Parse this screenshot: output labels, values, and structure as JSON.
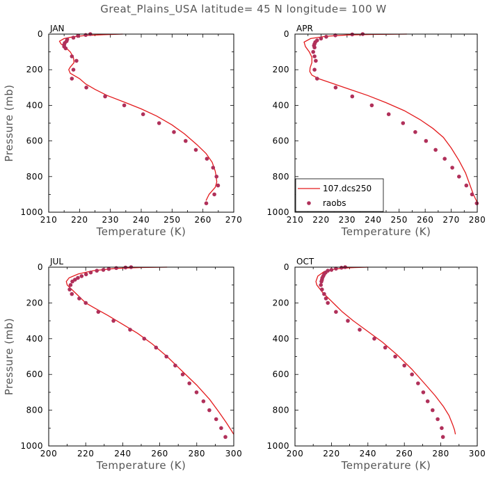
{
  "figure": {
    "title": "Great_Plains_USA  latitude= 45 N longitude= 100 W"
  },
  "legend": {
    "model_label": "107.dcs250",
    "obs_label": "raobs",
    "model_color": "#e31a1c",
    "obs_color": "#b0305a"
  },
  "chart_data": [
    {
      "type": "line",
      "title": "JAN",
      "xlabel": "Temperature (K)",
      "ylabel": "Pressure (mb)",
      "xlim": [
        210,
        270
      ],
      "xticks": [
        210,
        220,
        230,
        240,
        250,
        260,
        270
      ],
      "ylim": [
        1000,
        0
      ],
      "yticks": [
        0,
        200,
        400,
        600,
        800,
        1000
      ],
      "series": [
        {
          "name": "107.dcs250",
          "kind": "line",
          "points": [
            [
              234,
              0
            ],
            [
              228,
              3
            ],
            [
              222,
              8
            ],
            [
              218,
              15
            ],
            [
              215,
              25
            ],
            [
              213.5,
              40
            ],
            [
              214,
              55
            ],
            [
              215.5,
              75
            ],
            [
              217,
              100
            ],
            [
              218,
              130
            ],
            [
              218.2,
              160
            ],
            [
              217,
              185
            ],
            [
              216.5,
              200
            ],
            [
              217,
              220
            ],
            [
              218.5,
              235
            ],
            [
              220,
              250
            ],
            [
              222,
              280
            ],
            [
              225,
              310
            ],
            [
              229,
              345
            ],
            [
              235,
              385
            ],
            [
              240,
              420
            ],
            [
              245,
              460
            ],
            [
              250,
              510
            ],
            [
              254,
              560
            ],
            [
              258,
              620
            ],
            [
              261,
              670
            ],
            [
              263,
              720
            ],
            [
              264,
              770
            ],
            [
              264.3,
              800
            ],
            [
              264.5,
              830
            ],
            [
              264,
              860
            ],
            [
              262,
              900
            ],
            [
              261,
              935
            ]
          ]
        },
        {
          "name": "raobs",
          "kind": "scatter",
          "points": [
            [
              223.5,
              0
            ],
            [
              222,
              5
            ],
            [
              219.5,
              10
            ],
            [
              218,
              20
            ],
            [
              216,
              30
            ],
            [
              215.8,
              40
            ],
            [
              215.2,
              50
            ],
            [
              215,
              60
            ],
            [
              215,
              70
            ],
            [
              215.5,
              80
            ],
            [
              217.5,
              125
            ],
            [
              219,
              150
            ],
            [
              218,
              200
            ],
            [
              217.5,
              250
            ],
            [
              222.2,
              300
            ],
            [
              228.3,
              350
            ],
            [
              234.5,
              400
            ],
            [
              240.6,
              450
            ],
            [
              245.8,
              500
            ],
            [
              250.6,
              550
            ],
            [
              254.4,
              600
            ],
            [
              257.7,
              650
            ],
            [
              261.3,
              700
            ],
            [
              263.3,
              750
            ],
            [
              264.4,
              800
            ],
            [
              264.9,
              850
            ],
            [
              263.7,
              900
            ],
            [
              261.1,
              950
            ]
          ]
        }
      ]
    },
    {
      "type": "line",
      "title": "APR",
      "xlabel": "Temperature (K)",
      "ylabel": "",
      "xlim": [
        210,
        280
      ],
      "xticks": [
        210,
        220,
        230,
        240,
        250,
        260,
        270,
        280
      ],
      "ylim": [
        1000,
        0
      ],
      "yticks": [
        0,
        200,
        400,
        600,
        800,
        1000
      ],
      "show_legend": true,
      "series": [
        {
          "name": "107.dcs250",
          "kind": "line",
          "points": [
            [
              253,
              0
            ],
            [
              240,
              2
            ],
            [
              230,
              5
            ],
            [
              222,
              12
            ],
            [
              216,
              25
            ],
            [
              213.5,
              45
            ],
            [
              214,
              70
            ],
            [
              215.5,
              100
            ],
            [
              216.5,
              130
            ],
            [
              216.5,
              160
            ],
            [
              215.8,
              190
            ],
            [
              215.7,
              210
            ],
            [
              216.5,
              230
            ],
            [
              219,
              250
            ],
            [
              224,
              275
            ],
            [
              230,
              305
            ],
            [
              238,
              345
            ],
            [
              245,
              385
            ],
            [
              252,
              430
            ],
            [
              258,
              480
            ],
            [
              263,
              530
            ],
            [
              267,
              580
            ],
            [
              270,
              640
            ],
            [
              273,
              710
            ],
            [
              275.5,
              780
            ],
            [
              277,
              840
            ],
            [
              278.5,
              900
            ],
            [
              279.5,
              930
            ],
            [
              280,
              945
            ]
          ]
        },
        {
          "name": "raobs",
          "kind": "scatter",
          "points": [
            [
              236,
              0
            ],
            [
              232,
              2
            ],
            [
              225.5,
              7
            ],
            [
              222,
              15
            ],
            [
              220,
              25
            ],
            [
              218.5,
              35
            ],
            [
              217.8,
              45
            ],
            [
              217.5,
              55
            ],
            [
              217.3,
              65
            ],
            [
              217.5,
              75
            ],
            [
              217,
              100
            ],
            [
              217.5,
              125
            ],
            [
              218,
              150
            ],
            [
              217.5,
              200
            ],
            [
              218.5,
              250
            ],
            [
              225.6,
              300
            ],
            [
              232,
              350
            ],
            [
              239.5,
              400
            ],
            [
              246,
              450
            ],
            [
              251.5,
              500
            ],
            [
              256.2,
              550
            ],
            [
              260.3,
              600
            ],
            [
              264,
              650
            ],
            [
              267.5,
              700
            ],
            [
              270.4,
              750
            ],
            [
              273,
              800
            ],
            [
              275.8,
              850
            ],
            [
              278,
              900
            ],
            [
              279.8,
              950
            ]
          ]
        }
      ]
    },
    {
      "type": "line",
      "title": "JUL",
      "xlabel": "Temperature (K)",
      "ylabel": "Pressure (mb)",
      "xlim": [
        200,
        300
      ],
      "xticks": [
        200,
        220,
        240,
        260,
        280,
        300
      ],
      "ylim": [
        1000,
        0
      ],
      "yticks": [
        0,
        200,
        400,
        600,
        800,
        1000
      ],
      "series": [
        {
          "name": "107.dcs250",
          "kind": "line",
          "points": [
            [
              264,
              0
            ],
            [
              250,
              2
            ],
            [
              236,
              7
            ],
            [
              224,
              20
            ],
            [
              216,
              38
            ],
            [
              211,
              60
            ],
            [
              209.5,
              80
            ],
            [
              210,
              100
            ],
            [
              212,
              120
            ],
            [
              214,
              140
            ],
            [
              216,
              160
            ],
            [
              218,
              180
            ],
            [
              220,
              200
            ],
            [
              225,
              230
            ],
            [
              232,
              270
            ],
            [
              240,
              320
            ],
            [
              248,
              370
            ],
            [
              256,
              430
            ],
            [
              264,
              500
            ],
            [
              272,
              580
            ],
            [
              280,
              660
            ],
            [
              287,
              740
            ],
            [
              292,
              810
            ],
            [
              296,
              870
            ],
            [
              298.5,
              910
            ],
            [
              300,
              935
            ]
          ]
        },
        {
          "name": "raobs",
          "kind": "scatter",
          "points": [
            [
              244.5,
              0
            ],
            [
              241.5,
              2
            ],
            [
              236.5,
              5
            ],
            [
              232.5,
              10
            ],
            [
              229.5,
              15
            ],
            [
              226,
              20
            ],
            [
              222.7,
              30
            ],
            [
              220.2,
              40
            ],
            [
              217.8,
              50
            ],
            [
              215.8,
              60
            ],
            [
              214.2,
              70
            ],
            [
              212.8,
              80
            ],
            [
              211.8,
              100
            ],
            [
              211.3,
              125
            ],
            [
              212.5,
              150
            ],
            [
              216.5,
              175
            ],
            [
              220,
              200
            ],
            [
              226.8,
              250
            ],
            [
              235,
              300
            ],
            [
              244,
              350
            ],
            [
              251.6,
              400
            ],
            [
              258,
              450
            ],
            [
              263.6,
              500
            ],
            [
              268.4,
              550
            ],
            [
              272.4,
              600
            ],
            [
              276,
              650
            ],
            [
              279.9,
              700
            ],
            [
              283.6,
              750
            ],
            [
              286.8,
              800
            ],
            [
              290.5,
              850
            ],
            [
              293.2,
              900
            ],
            [
              295.5,
              950
            ]
          ]
        }
      ]
    },
    {
      "type": "line",
      "title": "OCT",
      "xlabel": "Temperature (K)",
      "ylabel": "",
      "xlim": [
        200,
        300
      ],
      "xticks": [
        200,
        220,
        240,
        260,
        280,
        300
      ],
      "ylim": [
        1000,
        0
      ],
      "yticks": [
        0,
        200,
        400,
        600,
        800,
        1000
      ],
      "series": [
        {
          "name": "107.dcs250",
          "kind": "line",
          "points": [
            [
              240,
              0
            ],
            [
              230,
              3
            ],
            [
              222,
              10
            ],
            [
              216,
              25
            ],
            [
              212.5,
              50
            ],
            [
              211.5,
              80
            ],
            [
              212,
              100
            ],
            [
              213.5,
              120
            ],
            [
              215,
              140
            ],
            [
              217,
              160
            ],
            [
              219,
              180
            ],
            [
              222,
              210
            ],
            [
              226,
              250
            ],
            [
              232,
              300
            ],
            [
              240,
              360
            ],
            [
              248,
              420
            ],
            [
              256,
              490
            ],
            [
              264,
              570
            ],
            [
              271,
              650
            ],
            [
              277,
              720
            ],
            [
              281.5,
              780
            ],
            [
              284.5,
              830
            ],
            [
              286.5,
              880
            ],
            [
              287.5,
              910
            ],
            [
              288,
              935
            ]
          ]
        },
        {
          "name": "raobs",
          "kind": "scatter",
          "points": [
            [
              227.5,
              0
            ],
            [
              225.5,
              3
            ],
            [
              222.5,
              8
            ],
            [
              220,
              15
            ],
            [
              218,
              20
            ],
            [
              216.8,
              30
            ],
            [
              216,
              40
            ],
            [
              215.5,
              50
            ],
            [
              215,
              60
            ],
            [
              214.8,
              70
            ],
            [
              214.5,
              80
            ],
            [
              214.2,
              100
            ],
            [
              214.8,
              125
            ],
            [
              216,
              150
            ],
            [
              217,
              175
            ],
            [
              218,
              200
            ],
            [
              222.5,
              250
            ],
            [
              229,
              300
            ],
            [
              235.5,
              350
            ],
            [
              243.5,
              400
            ],
            [
              249.5,
              450
            ],
            [
              255,
              500
            ],
            [
              260,
              550
            ],
            [
              264.2,
              600
            ],
            [
              267.5,
              650
            ],
            [
              270.4,
              700
            ],
            [
              272.8,
              750
            ],
            [
              275.5,
              800
            ],
            [
              278.3,
              850
            ],
            [
              280.5,
              900
            ],
            [
              281.2,
              950
            ]
          ]
        }
      ]
    }
  ]
}
